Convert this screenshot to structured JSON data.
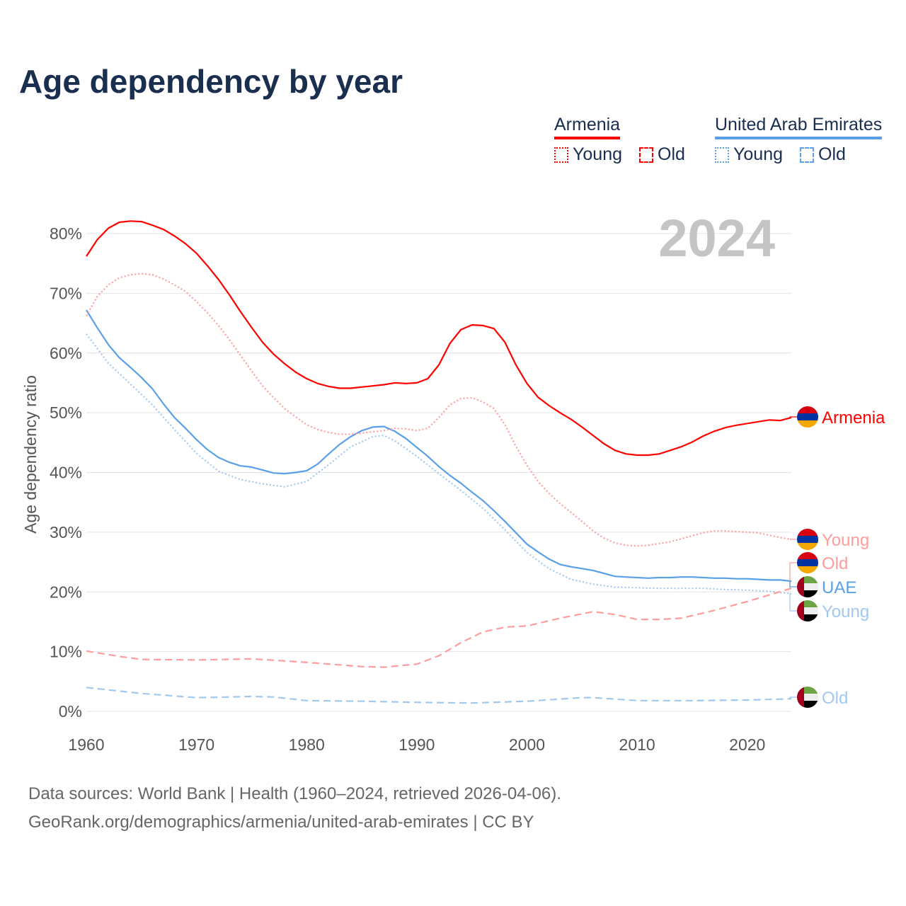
{
  "title": "Age dependency by year",
  "legend": {
    "groups": [
      {
        "name": "Armenia",
        "color": "#ff0000",
        "items": [
          "Young",
          "Old"
        ]
      },
      {
        "name": "United Arab Emirates",
        "color": "#5aa0e8",
        "items": [
          "Young",
          "Old"
        ]
      }
    ]
  },
  "year_badge": "2024",
  "footer": {
    "line1": "Data sources: World Bank | Health (1960–2024, retrieved 2026-04-06).",
    "line2": "GeoRank.org/demographics/armenia/united-arab-emirates | CC BY"
  },
  "chart_data": {
    "type": "line",
    "title": "Age dependency by year",
    "xlabel": "",
    "ylabel": "Age dependency ratio",
    "xlim": [
      1960,
      2024
    ],
    "ylim": [
      0,
      80
    ],
    "xticks": [
      "1960",
      "1970",
      "1980",
      "1990",
      "2000",
      "2010",
      "2020"
    ],
    "yticks": [
      "0%",
      "10%",
      "20%",
      "30%",
      "40%",
      "50%",
      "60%",
      "70%",
      "80%"
    ],
    "grid": true,
    "series": [
      {
        "name": "Armenia",
        "end_label": "Armenia",
        "country": "armenia",
        "style": "solid",
        "color": "#ff0000",
        "x": [
          1960,
          1961,
          1962,
          1963,
          1964,
          1965,
          1966,
          1967,
          1968,
          1969,
          1970,
          1971,
          1972,
          1973,
          1974,
          1975,
          1976,
          1977,
          1978,
          1979,
          1980,
          1981,
          1982,
          1983,
          1984,
          1985,
          1986,
          1987,
          1988,
          1989,
          1990,
          1991,
          1992,
          1993,
          1994,
          1995,
          1996,
          1997,
          1998,
          1999,
          2000,
          2001,
          2002,
          2003,
          2004,
          2005,
          2006,
          2007,
          2008,
          2009,
          2010,
          2011,
          2012,
          2013,
          2014,
          2015,
          2016,
          2017,
          2018,
          2019,
          2020,
          2021,
          2022,
          2023,
          2024
        ],
        "y": [
          76.2,
          79,
          80.9,
          81.9,
          82.1,
          82,
          81.4,
          80.7,
          79.6,
          78.3,
          76.7,
          74.6,
          72.3,
          69.7,
          66.9,
          64.3,
          61.8,
          59.8,
          58.2,
          56.8,
          55.7,
          54.9,
          54.4,
          54.1,
          54.1,
          54.3,
          54.5,
          54.7,
          55,
          54.9,
          55,
          55.7,
          58,
          61.6,
          63.9,
          64.7,
          64.6,
          64.1,
          61.8,
          58,
          54.9,
          52.6,
          51.2,
          50,
          48.9,
          47.6,
          46.2,
          44.8,
          43.7,
          43.1,
          42.9,
          42.9,
          43.1,
          43.7,
          44.3,
          45.1,
          46.1,
          46.9,
          47.5,
          47.9,
          48.2,
          48.5,
          48.8,
          48.7,
          49.2
        ]
      },
      {
        "name": "Armenia Young",
        "end_label": "Young",
        "country": "armenia",
        "style": "dotted",
        "color": "#ff9d9d",
        "x": [
          1960,
          1961,
          1962,
          1963,
          1964,
          1965,
          1966,
          1967,
          1968,
          1969,
          1970,
          1971,
          1972,
          1973,
          1974,
          1975,
          1976,
          1977,
          1978,
          1979,
          1980,
          1981,
          1982,
          1983,
          1984,
          1985,
          1986,
          1987,
          1988,
          1989,
          1990,
          1991,
          1992,
          1993,
          1994,
          1995,
          1996,
          1997,
          1998,
          1999,
          2000,
          2001,
          2002,
          2003,
          2004,
          2005,
          2006,
          2007,
          2008,
          2009,
          2010,
          2011,
          2012,
          2013,
          2014,
          2015,
          2016,
          2017,
          2018,
          2019,
          2020,
          2021,
          2022,
          2023,
          2024
        ],
        "y": [
          66.2,
          69.5,
          71.4,
          72.6,
          73.1,
          73.3,
          73.1,
          72.4,
          71.4,
          70.3,
          68.6,
          66.7,
          64.6,
          62.2,
          59.6,
          57,
          54.5,
          52.5,
          50.7,
          49.3,
          48,
          47.2,
          46.7,
          46.4,
          46.4,
          46.6,
          46.8,
          47,
          47.4,
          47.3,
          47,
          47.4,
          49.2,
          51.3,
          52.4,
          52.5,
          51.8,
          50.7,
          48,
          44.4,
          41.2,
          38.5,
          36.5,
          34.8,
          33.3,
          31.8,
          30.2,
          29,
          28.2,
          27.8,
          27.7,
          27.8,
          28.1,
          28.4,
          28.9,
          29.4,
          29.9,
          30.2,
          30.2,
          30.1,
          30,
          29.9,
          29.5,
          29.1,
          28.8
        ]
      },
      {
        "name": "Armenia Old",
        "end_label": "Old",
        "country": "armenia",
        "style": "dashed",
        "color": "#ff9d9d",
        "x": [
          1960,
          1963,
          1965,
          1970,
          1975,
          1980,
          1985,
          1987,
          1990,
          1992,
          1994,
          1996,
          1998,
          2000,
          2003,
          2006,
          2008,
          2010,
          2012,
          2014,
          2017,
          2020,
          2024
        ],
        "y": [
          10.1,
          9.2,
          8.7,
          8.6,
          8.8,
          8.2,
          7.5,
          7.4,
          7.9,
          9.3,
          11.5,
          13.3,
          14.1,
          14.3,
          15.6,
          16.7,
          16.2,
          15.4,
          15.4,
          15.6,
          16.9,
          18.4,
          20.6
        ]
      },
      {
        "name": "United Arab Emirates",
        "end_label": "UAE",
        "country": "uae",
        "style": "solid",
        "color": "#5aa0e8",
        "x": [
          1960,
          1961,
          1962,
          1963,
          1964,
          1965,
          1966,
          1967,
          1968,
          1969,
          1970,
          1971,
          1972,
          1973,
          1974,
          1975,
          1976,
          1977,
          1978,
          1979,
          1980,
          1981,
          1982,
          1983,
          1984,
          1985,
          1986,
          1987,
          1988,
          1989,
          1990,
          1991,
          1992,
          1993,
          1994,
          1995,
          1996,
          1997,
          1998,
          1999,
          2000,
          2001,
          2002,
          2003,
          2004,
          2005,
          2006,
          2007,
          2008,
          2009,
          2010,
          2011,
          2012,
          2013,
          2014,
          2015,
          2016,
          2017,
          2018,
          2019,
          2020,
          2021,
          2022,
          2023,
          2024
        ],
        "y": [
          67.2,
          64.2,
          61.4,
          59.2,
          57.6,
          55.9,
          54,
          51.5,
          49.2,
          47.4,
          45.5,
          43.8,
          42.5,
          41.7,
          41.1,
          40.9,
          40.4,
          39.9,
          39.8,
          40,
          40.3,
          41.4,
          43.1,
          44.7,
          46,
          47,
          47.6,
          47.7,
          46.9,
          45.7,
          44.2,
          42.7,
          41,
          39.5,
          38.2,
          36.7,
          35.3,
          33.6,
          31.8,
          29.9,
          28,
          26.7,
          25.5,
          24.6,
          24.2,
          23.9,
          23.6,
          23.1,
          22.6,
          22.5,
          22.4,
          22.3,
          22.4,
          22.4,
          22.5,
          22.5,
          22.4,
          22.3,
          22.3,
          22.2,
          22.2,
          22.1,
          22,
          22,
          21.8
        ]
      },
      {
        "name": "United Arab Emirates Young",
        "end_label": "Young",
        "country": "uae",
        "style": "dotted",
        "color": "#a3c8f0",
        "x": [
          1960,
          1962,
          1964,
          1966,
          1968,
          1970,
          1972,
          1974,
          1976,
          1978,
          1980,
          1982,
          1984,
          1986,
          1987,
          1988,
          1990,
          1992,
          1994,
          1996,
          1998,
          2000,
          2002,
          2004,
          2006,
          2008,
          2010,
          2012,
          2014,
          2016,
          2018,
          2020,
          2022,
          2024
        ],
        "y": [
          63.2,
          58.3,
          54.8,
          51.3,
          47.2,
          43.2,
          40.2,
          38.8,
          38.1,
          37.6,
          38.5,
          41.3,
          44.3,
          46,
          46.2,
          45.3,
          42.7,
          39.8,
          37,
          34,
          30.4,
          26.6,
          23.9,
          22.1,
          21.3,
          20.8,
          20.7,
          20.6,
          20.6,
          20.6,
          20.4,
          20.3,
          20.1,
          19.7
        ]
      },
      {
        "name": "United Arab Emirates Old",
        "end_label": "Old",
        "country": "uae",
        "style": "dashed",
        "color": "#a3c8f0",
        "x": [
          1960,
          1965,
          1970,
          1973,
          1975,
          1977,
          1980,
          1985,
          1990,
          1995,
          2000,
          2005,
          2006,
          2010,
          2015,
          2020,
          2024
        ],
        "y": [
          4,
          3,
          2.3,
          2.4,
          2.5,
          2.4,
          1.8,
          1.7,
          1.5,
          1.4,
          1.7,
          2.3,
          2.3,
          1.8,
          1.8,
          1.9,
          2.1
        ]
      }
    ]
  }
}
